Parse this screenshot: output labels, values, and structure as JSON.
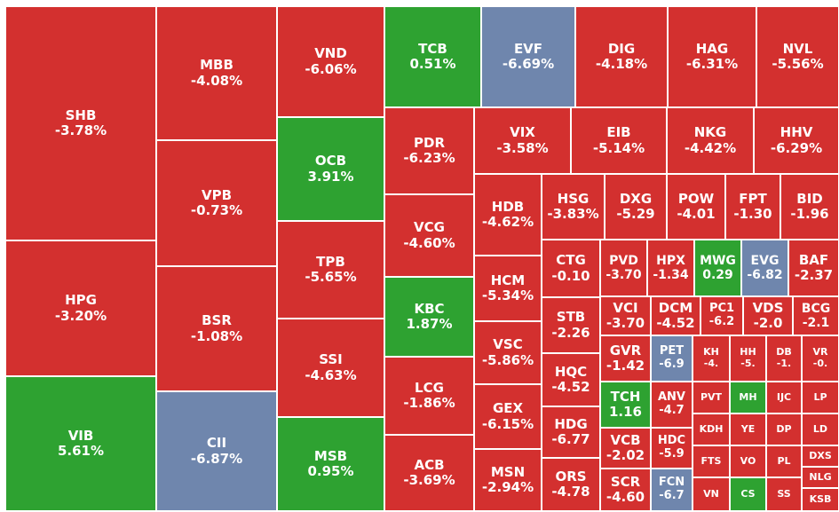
{
  "colors": {
    "down": "#d3302f",
    "up": "#2ea231",
    "floor": "#6f86ad",
    "border": "#ffffff"
  },
  "chart_data": {
    "type": "treemap",
    "tiles": [
      {
        "ticker": "SHB",
        "change": "-3.78%",
        "status": "down"
      },
      {
        "ticker": "HPG",
        "change": "-3.20%",
        "status": "down"
      },
      {
        "ticker": "VIB",
        "change": "5.61%",
        "status": "up"
      },
      {
        "ticker": "MBB",
        "change": "-4.08%",
        "status": "down"
      },
      {
        "ticker": "VPB",
        "change": "-0.73%",
        "status": "down"
      },
      {
        "ticker": "BSR",
        "change": "-1.08%",
        "status": "down"
      },
      {
        "ticker": "CII",
        "change": "-6.87%",
        "status": "floor"
      },
      {
        "ticker": "VND",
        "change": "-6.06%",
        "status": "down"
      },
      {
        "ticker": "OCB",
        "change": "3.91%",
        "status": "up"
      },
      {
        "ticker": "TPB",
        "change": "-5.65%",
        "status": "down"
      },
      {
        "ticker": "SSI",
        "change": "-4.63%",
        "status": "down"
      },
      {
        "ticker": "MSB",
        "change": "0.95%",
        "status": "up"
      },
      {
        "ticker": "TCB",
        "change": "0.51%",
        "status": "up"
      },
      {
        "ticker": "EVF",
        "change": "-6.69%",
        "status": "floor"
      },
      {
        "ticker": "DIG",
        "change": "-4.18%",
        "status": "down"
      },
      {
        "ticker": "HAG",
        "change": "-6.31%",
        "status": "down"
      },
      {
        "ticker": "NVL",
        "change": "-5.56%",
        "status": "down"
      },
      {
        "ticker": "PDR",
        "change": "-6.23%",
        "status": "down"
      },
      {
        "ticker": "VCG",
        "change": "-4.60%",
        "status": "down"
      },
      {
        "ticker": "KBC",
        "change": "1.87%",
        "status": "up"
      },
      {
        "ticker": "LCG",
        "change": "-1.86%",
        "status": "down"
      },
      {
        "ticker": "ACB",
        "change": "-3.69%",
        "status": "down"
      },
      {
        "ticker": "VIX",
        "change": "-3.58%",
        "status": "down"
      },
      {
        "ticker": "EIB",
        "change": "-5.14%",
        "status": "down"
      },
      {
        "ticker": "NKG",
        "change": "-4.42%",
        "status": "down"
      },
      {
        "ticker": "HHV",
        "change": "-6.29%",
        "status": "down"
      },
      {
        "ticker": "HDB",
        "change": "-4.62%",
        "status": "down"
      },
      {
        "ticker": "HCM",
        "change": "-5.34%",
        "status": "down"
      },
      {
        "ticker": "VSC",
        "change": "-5.86%",
        "status": "down"
      },
      {
        "ticker": "GEX",
        "change": "-6.15%",
        "status": "down"
      },
      {
        "ticker": "MSN",
        "change": "-2.94%",
        "status": "down"
      },
      {
        "ticker": "HSG",
        "change": "-3.83%",
        "status": "down"
      },
      {
        "ticker": "DXG",
        "change": "-5.29",
        "status": "down"
      },
      {
        "ticker": "POW",
        "change": "-4.01",
        "status": "down"
      },
      {
        "ticker": "FPT",
        "change": "-1.30",
        "status": "down"
      },
      {
        "ticker": "BID",
        "change": "-1.96",
        "status": "down"
      },
      {
        "ticker": "CTG",
        "change": "-0.10",
        "status": "down"
      },
      {
        "ticker": "STB",
        "change": "-2.26",
        "status": "down"
      },
      {
        "ticker": "HQC",
        "change": "-4.52",
        "status": "down"
      },
      {
        "ticker": "HDG",
        "change": "-6.77",
        "status": "down"
      },
      {
        "ticker": "ORS",
        "change": "-4.78",
        "status": "down"
      },
      {
        "ticker": "PVD",
        "change": "-3.70",
        "status": "down"
      },
      {
        "ticker": "HPX",
        "change": "-1.34",
        "status": "down"
      },
      {
        "ticker": "MWG",
        "change": "0.29",
        "status": "up"
      },
      {
        "ticker": "EVG",
        "change": "-6.82",
        "status": "floor"
      },
      {
        "ticker": "BAF",
        "change": "-2.37",
        "status": "down"
      },
      {
        "ticker": "VCI",
        "change": "-3.70",
        "status": "down"
      },
      {
        "ticker": "DCM",
        "change": "-4.52",
        "status": "down"
      },
      {
        "ticker": "PC1",
        "change": "-6.2",
        "status": "down"
      },
      {
        "ticker": "VDS",
        "change": "-2.0",
        "status": "down"
      },
      {
        "ticker": "BCG",
        "change": "-2.1",
        "status": "down"
      },
      {
        "ticker": "GVR",
        "change": "-1.42",
        "status": "down"
      },
      {
        "ticker": "PET",
        "change": "-6.9",
        "status": "floor"
      },
      {
        "ticker": "KH",
        "change": "-4.",
        "status": "down"
      },
      {
        "ticker": "HH",
        "change": "-5.",
        "status": "down"
      },
      {
        "ticker": "DB",
        "change": "-1.",
        "status": "down"
      },
      {
        "ticker": "VR",
        "change": "-0.",
        "status": "down"
      },
      {
        "ticker": "TCH",
        "change": "1.16",
        "status": "up"
      },
      {
        "ticker": "ANV",
        "change": "-4.7",
        "status": "down"
      },
      {
        "ticker": "PVT",
        "change": "",
        "status": "down"
      },
      {
        "ticker": "MH",
        "change": "",
        "status": "up"
      },
      {
        "ticker": "IJC",
        "change": "",
        "status": "down"
      },
      {
        "ticker": "LP",
        "change": "",
        "status": "down"
      },
      {
        "ticker": "VCB",
        "change": "-2.02",
        "status": "down"
      },
      {
        "ticker": "HDC",
        "change": "-5.9",
        "status": "down"
      },
      {
        "ticker": "KDH",
        "change": "",
        "status": "down"
      },
      {
        "ticker": "YE",
        "change": "",
        "status": "down"
      },
      {
        "ticker": "DP",
        "change": "",
        "status": "down"
      },
      {
        "ticker": "LD",
        "change": "",
        "status": "down"
      },
      {
        "ticker": "SCR",
        "change": "-4.60",
        "status": "down"
      },
      {
        "ticker": "FCN",
        "change": "-6.7",
        "status": "floor"
      },
      {
        "ticker": "FTS",
        "change": "",
        "status": "down"
      },
      {
        "ticker": "VO",
        "change": "",
        "status": "down"
      },
      {
        "ticker": "PL",
        "change": "",
        "status": "down"
      },
      {
        "ticker": "DXS",
        "change": "",
        "status": "down"
      },
      {
        "ticker": "NLG",
        "change": "",
        "status": "down"
      },
      {
        "ticker": "VN",
        "change": "",
        "status": "down"
      },
      {
        "ticker": "CS",
        "change": "",
        "status": "up"
      },
      {
        "ticker": "SS",
        "change": "",
        "status": "down"
      },
      {
        "ticker": "KSB",
        "change": "",
        "status": "down"
      }
    ]
  }
}
